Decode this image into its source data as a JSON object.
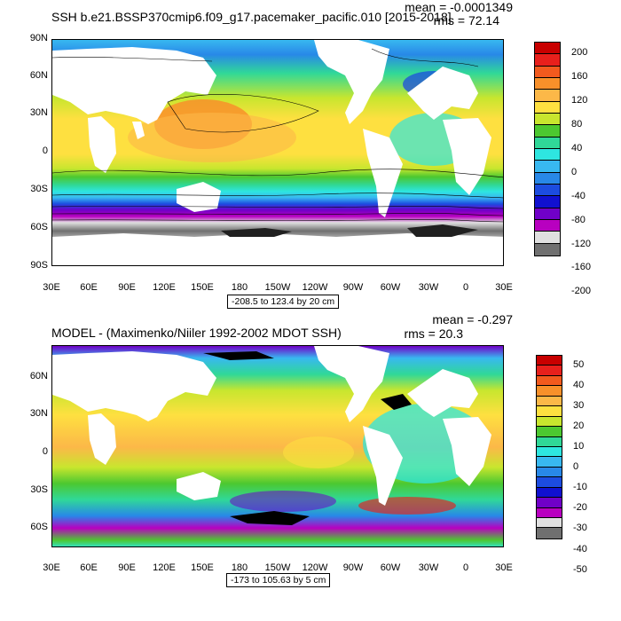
{
  "panel1": {
    "title": "SSH b.e21.BSSP370cmip6.f09_g17.pacemaker_pacific.010 [2015-2018]",
    "mean_text": "mean = -0.0001349",
    "rms_text": "rms = 72.14",
    "range_text": "-208.5 to 123.4 by 20 cm",
    "y_ticks": [
      "90N",
      "60N",
      "30N",
      "0",
      "30S",
      "60S",
      "90S"
    ],
    "x_ticks": [
      "30E",
      "60E",
      "90E",
      "120E",
      "150E",
      "180",
      "150W",
      "120W",
      "90W",
      "60W",
      "30W",
      "0",
      "30E"
    ],
    "colorbar_labels": [
      "200",
      "160",
      "120",
      "80",
      "40",
      "0",
      "-40",
      "-80",
      "-120",
      "-160",
      "-200"
    ],
    "colorbar_colors": [
      "#c80000",
      "#e8201c",
      "#f25a1e",
      "#f8902a",
      "#fcb848",
      "#fee040",
      "#c8e62e",
      "#4cc830",
      "#30d898",
      "#2ee6e0",
      "#38b8f0",
      "#2888e8",
      "#1c4ce0",
      "#1010d0",
      "#7000c8",
      "#b800c0",
      "#e0e0e0",
      "#707070"
    ]
  },
  "panel2": {
    "title": "MODEL - (Maximenko/Niiler 1992-2002 MDOT SSH)",
    "mean_text": "mean = -0.297",
    "rms_text": "rms = 20.3",
    "range_text": "-173 to 105.63 by 5 cm",
    "y_ticks": [
      "60N",
      "30N",
      "0",
      "30S",
      "60S"
    ],
    "x_ticks": [
      "30E",
      "60E",
      "90E",
      "120E",
      "150E",
      "180",
      "150W",
      "120W",
      "90W",
      "60W",
      "30W",
      "0",
      "30E"
    ],
    "colorbar_labels": [
      "50",
      "40",
      "30",
      "20",
      "10",
      "0",
      "-10",
      "-20",
      "-30",
      "-40",
      "-50"
    ],
    "colorbar_colors": [
      "#c80000",
      "#e8201c",
      "#f25a1e",
      "#f8902a",
      "#fcb848",
      "#fee040",
      "#c8e62e",
      "#4cc830",
      "#30d898",
      "#2ee6e0",
      "#38b8f0",
      "#2888e8",
      "#1c4ce0",
      "#1010d0",
      "#7000c8",
      "#b800c0",
      "#e0e0e0",
      "#707070"
    ]
  }
}
